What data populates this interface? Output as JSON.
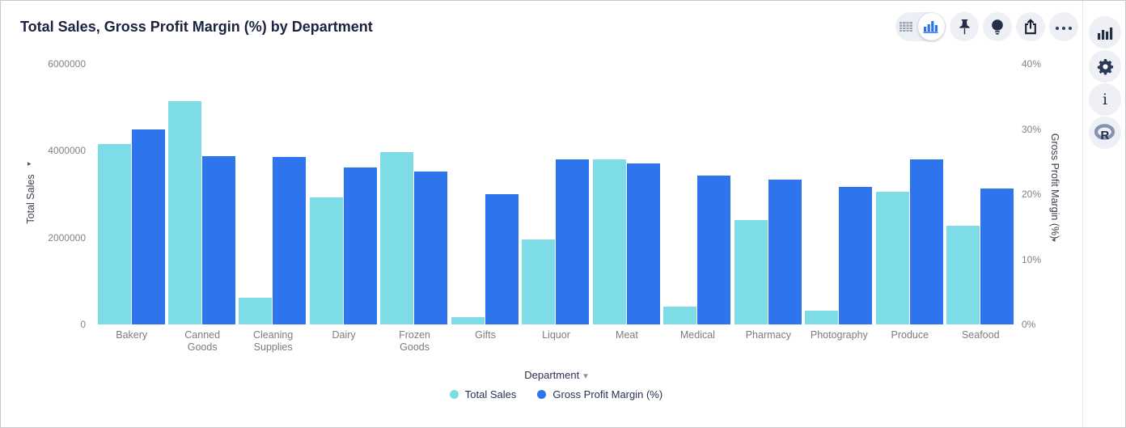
{
  "title": "Total Sales, Gross Profit Margin (%) by Department",
  "toolbar": {
    "view_toggle": {
      "options": [
        {
          "icon": "table-view-icon",
          "selected": false
        },
        {
          "icon": "bar-chart-view-icon",
          "selected": true
        }
      ]
    },
    "buttons": [
      {
        "icon": "pushpin-icon"
      },
      {
        "icon": "lightbulb-icon"
      },
      {
        "icon": "export-share-icon"
      },
      {
        "icon": "ellipsis-more-icon"
      }
    ]
  },
  "side_rail": {
    "buttons": [
      {
        "icon": "bar-chart-icon"
      },
      {
        "icon": "gear-icon"
      },
      {
        "icon": "info-icon",
        "glyph": "i"
      },
      {
        "icon": "r-logo-icon",
        "glyph": "R"
      }
    ]
  },
  "chart_data": {
    "type": "bar",
    "title": "Total Sales, Gross Profit Margin (%) by Department",
    "categories": [
      "Bakery",
      "Canned Goods",
      "Cleaning Supplies",
      "Dairy",
      "Frozen Goods",
      "Gifts",
      "Liquor",
      "Meat",
      "Medical",
      "Pharmacy",
      "Photography",
      "Produce",
      "Seafood"
    ],
    "series": [
      {
        "name": "Total Sales",
        "axis": "left",
        "color": "#7edce6",
        "values": [
          4150000,
          5140000,
          620000,
          2930000,
          3970000,
          170000,
          1960000,
          3800000,
          415000,
          2400000,
          320000,
          3060000,
          2270000
        ]
      },
      {
        "name": "Gross Profit Margin (%)",
        "axis": "right",
        "color": "#2e74ec",
        "values": [
          30.0,
          25.9,
          25.7,
          24.1,
          23.5,
          20.0,
          25.4,
          24.7,
          22.9,
          22.2,
          21.1,
          25.3,
          20.9
        ]
      }
    ],
    "left_axis": {
      "label": "Total Sales",
      "min": 0,
      "max": 6000000,
      "ticks": [
        "6000000",
        "4000000",
        "2000000",
        "0"
      ]
    },
    "right_axis": {
      "label": "Gross Profit Margin (%)",
      "min": 0,
      "max": 40,
      "ticks": [
        "40%",
        "30%",
        "20%",
        "10%",
        "0%"
      ]
    },
    "xlabel": "Department",
    "grid": false,
    "legend_position": "bottom",
    "legend": [
      "Total Sales",
      "Gross Profit Margin (%)"
    ]
  }
}
